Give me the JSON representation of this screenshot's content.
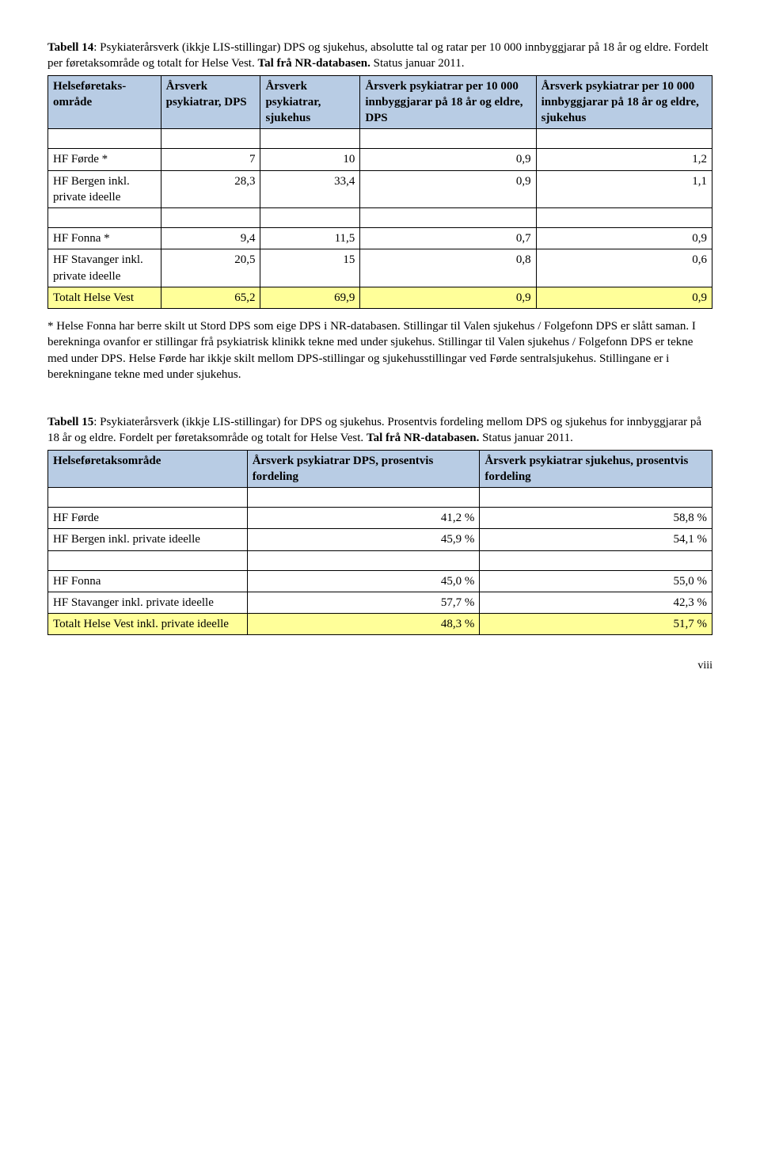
{
  "table14": {
    "intro_html": "<span class='bold'>Tabell 14</span>: Psykiaterårsverk (ikkje LIS-stillingar) DPS og sjukehus, absolutte tal og ratar per 10 000 innbyggjarar på 18 år og eldre. Fordelt per føretaksområde og totalt for Helse Vest. <span class='bold'>Tal frå NR-databasen.</span> Status januar 2011.",
    "headers": [
      "Helseføretaks-område",
      "Årsverk psykiatrar, DPS",
      "Årsverk psykiatrar, sjukehus",
      "Årsverk psykiatrar per 10 000 innbyggjarar på 18 år og eldre, DPS",
      "Årsverk psykiatrar per 10 000 innbyggjarar på 18 år og eldre, sjukehus"
    ],
    "rows": [
      {
        "cells": [
          "HF Førde *",
          "7",
          "10",
          "0,9",
          "1,2"
        ],
        "hl": false,
        "align": [
          "l",
          "r",
          "r",
          "r",
          "r"
        ]
      },
      {
        "cells": [
          "HF Bergen inkl. private ideelle",
          "28,3",
          "33,4",
          "0,9",
          "1,1"
        ],
        "hl": false,
        "align": [
          "l",
          "r",
          "r",
          "r",
          "r"
        ]
      },
      {
        "empty": true
      },
      {
        "cells": [
          "HF Fonna *",
          "9,4",
          "11,5",
          "0,7",
          "0,9"
        ],
        "hl": false,
        "align": [
          "l",
          "r",
          "r",
          "r",
          "r"
        ]
      },
      {
        "cells": [
          "HF Stavanger inkl. private ideelle",
          "20,5",
          "15",
          "0,8",
          "0,6"
        ],
        "hl": false,
        "align": [
          "l",
          "r",
          "r",
          "r",
          "r"
        ]
      },
      {
        "cells": [
          "Totalt\nHelse Vest",
          "65,2",
          "69,9",
          "0,9",
          "0,9"
        ],
        "hl": true,
        "align": [
          "l",
          "r",
          "r",
          "r",
          "r"
        ]
      }
    ],
    "footnote": "* Helse Fonna har berre skilt ut Stord DPS som eige DPS i NR-databasen. Stillingar til Valen sjukehus / Folgefonn DPS er slått saman. I berekninga ovanfor er stillingar frå psykiatrisk klinikk tekne med under sjukehus. Stillingar til Valen sjukehus / Folgefonn DPS er tekne med under DPS. Helse Førde har ikkje skilt mellom DPS-stillingar og sjukehusstillingar ved Førde sentralsjukehus. Stillingane er i berekningane tekne med under sjukehus."
  },
  "table15": {
    "intro_html": "<span class='bold'>Tabell 15</span>: Psykiaterårsverk (ikkje LIS-stillingar) for DPS og sjukehus. Prosentvis fordeling mellom DPS og sjukehus for innbyggjarar på 18 år og eldre. Fordelt per føretaksområde og totalt for Helse Vest. <span class='bold'>Tal frå NR-databasen.</span> Status januar 2011.",
    "headers": [
      "Helseføretaksområde",
      "Årsverk psykiatrar DPS, prosentvis fordeling",
      "Årsverk psykiatrar sjukehus, prosentvis fordeling"
    ],
    "rows": [
      {
        "cells": [
          "HF Førde",
          "41,2 %",
          "58,8 %"
        ],
        "hl": false,
        "align": [
          "l",
          "r",
          "r"
        ]
      },
      {
        "cells": [
          "HF Bergen inkl. private ideelle",
          "45,9 %",
          "54,1 %"
        ],
        "hl": false,
        "align": [
          "l",
          "r",
          "r"
        ]
      },
      {
        "empty": true
      },
      {
        "cells": [
          "HF Fonna",
          "45,0 %",
          "55,0 %"
        ],
        "hl": false,
        "align": [
          "l",
          "r",
          "r"
        ]
      },
      {
        "cells": [
          "HF Stavanger inkl. private ideelle",
          "57,7 %",
          "42,3 %"
        ],
        "hl": false,
        "align": [
          "l",
          "r",
          "r"
        ]
      },
      {
        "cells": [
          "Totalt Helse Vest inkl. private ideelle",
          "48,3 %",
          "51,7 %"
        ],
        "hl": true,
        "align": [
          "l",
          "r",
          "r"
        ]
      }
    ]
  },
  "page_number": "viii",
  "colors": {
    "header_bg": "#b8cce4",
    "highlight_bg": "#ffff99",
    "border": "#000000",
    "background": "#ffffff"
  }
}
